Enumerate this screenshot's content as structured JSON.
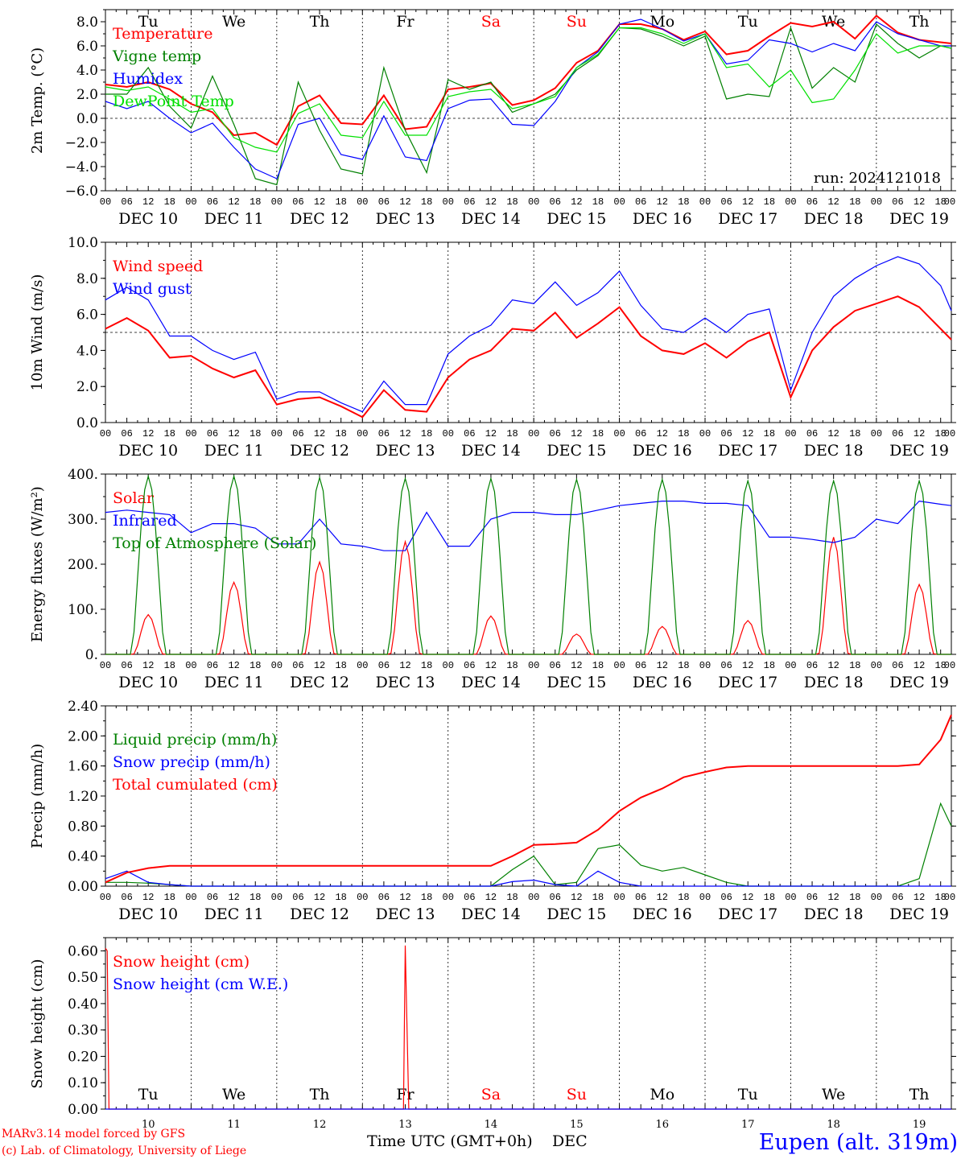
{
  "chart_data": [
    {
      "type": "line",
      "ylabel": "2m Temp. (°C)",
      "ylim": [
        -6,
        9
      ],
      "y_ticks": [
        "8.0",
        "6.0",
        "4.0",
        "2.0",
        "0.0",
        "−2.0",
        "−4.0",
        "−6.0"
      ],
      "y_tick_values": [
        8,
        6,
        4,
        2,
        0,
        -2,
        -4,
        -6
      ],
      "reference_line": 0,
      "legend": "top-left",
      "run_label": "run: 2024121018",
      "series": [
        {
          "name": "Temperature",
          "color": "#ff0000",
          "x": [
            0,
            6,
            12,
            18,
            24,
            30,
            36,
            42,
            48,
            54,
            60,
            66,
            72,
            78,
            84,
            90,
            96,
            102,
            108,
            114,
            120,
            126,
            132,
            138,
            144,
            150,
            156,
            162,
            168,
            174,
            180,
            186,
            192,
            198,
            204,
            210,
            216,
            222,
            228,
            234,
            237
          ],
          "y": [
            2.8,
            2.6,
            3.0,
            2.4,
            1.2,
            0.5,
            -1.4,
            -1.2,
            -2.2,
            1.0,
            1.9,
            -0.4,
            -0.5,
            1.9,
            -0.9,
            -0.7,
            2.4,
            2.6,
            2.9,
            1.1,
            1.5,
            2.5,
            4.6,
            5.6,
            7.8,
            7.8,
            7.4,
            6.5,
            7.2,
            5.3,
            5.6,
            6.8,
            7.9,
            7.6,
            8.0,
            6.6,
            8.5,
            7.1,
            6.5,
            6.3,
            6.2
          ]
        },
        {
          "name": "Vigne temp",
          "color": "#008000",
          "x": [
            0,
            6,
            12,
            18,
            24,
            30,
            36,
            42,
            48,
            54,
            60,
            66,
            72,
            78,
            84,
            90,
            96,
            102,
            108,
            114,
            120,
            126,
            132,
            138,
            144,
            150,
            156,
            162,
            168,
            174,
            180,
            186,
            192,
            198,
            204,
            210,
            216,
            222,
            228,
            234,
            237
          ],
          "y": [
            2.0,
            2.0,
            4.2,
            1.0,
            -0.8,
            3.5,
            -0.5,
            -5.0,
            -5.5,
            3.0,
            -1.0,
            -4.2,
            -4.6,
            4.2,
            -1.0,
            -4.5,
            3.2,
            2.4,
            3.0,
            0.5,
            1.2,
            2.0,
            4.0,
            5.2,
            7.5,
            7.4,
            6.8,
            6.0,
            6.8,
            1.6,
            2.0,
            1.8,
            7.5,
            2.5,
            4.2,
            3.0,
            7.8,
            6.2,
            5.0,
            6.0,
            5.8
          ]
        },
        {
          "name": "Humidex",
          "color": "#0000ff",
          "x": [
            0,
            6,
            12,
            18,
            24,
            30,
            36,
            42,
            48,
            54,
            60,
            66,
            72,
            78,
            84,
            90,
            96,
            102,
            108,
            114,
            120,
            126,
            132,
            138,
            144,
            150,
            156,
            162,
            168,
            174,
            180,
            186,
            192,
            198,
            204,
            210,
            216,
            222,
            228,
            234,
            237
          ],
          "y": [
            1.4,
            0.8,
            1.4,
            0.0,
            -1.2,
            -0.4,
            -2.4,
            -4.2,
            -5.0,
            -0.5,
            0.0,
            -3.0,
            -3.4,
            0.2,
            -3.2,
            -3.5,
            0.8,
            1.5,
            1.6,
            -0.5,
            -0.6,
            1.4,
            4.2,
            5.5,
            7.8,
            8.2,
            7.4,
            6.4,
            7.0,
            4.5,
            4.8,
            6.5,
            6.2,
            5.5,
            6.2,
            5.6,
            8.0,
            7.0,
            6.5,
            6.0,
            6.0
          ]
        },
        {
          "name": "DewPoint Temp",
          "color": "#00e000",
          "x": [
            0,
            6,
            12,
            18,
            24,
            30,
            36,
            42,
            48,
            54,
            60,
            66,
            72,
            78,
            84,
            90,
            96,
            102,
            108,
            114,
            120,
            126,
            132,
            138,
            144,
            150,
            156,
            162,
            168,
            174,
            180,
            186,
            192,
            198,
            204,
            210,
            216,
            222,
            228,
            234,
            237
          ],
          "y": [
            2.6,
            2.3,
            2.6,
            1.6,
            0.5,
            0.8,
            -1.6,
            -2.4,
            -2.8,
            0.4,
            1.2,
            -1.4,
            -1.6,
            1.4,
            -1.4,
            -1.4,
            1.8,
            2.2,
            2.4,
            0.8,
            1.2,
            1.8,
            4.2,
            5.3,
            7.5,
            7.5,
            7.0,
            6.2,
            7.0,
            4.2,
            4.5,
            2.6,
            4.0,
            1.3,
            1.6,
            4.0,
            7.0,
            5.4,
            6.0,
            6.0,
            5.8
          ]
        }
      ]
    },
    {
      "type": "line",
      "ylabel": "10m Wind (m/s)",
      "ylim": [
        0,
        10
      ],
      "y_ticks": [
        "10.0",
        "8.0",
        "6.0",
        "4.0",
        "2.0",
        "0.0"
      ],
      "y_tick_values": [
        10,
        8,
        6,
        4,
        2,
        0
      ],
      "reference_line": 5,
      "legend": "top-left",
      "series": [
        {
          "name": "Wind speed",
          "color": "#ff0000",
          "x": [
            0,
            6,
            12,
            18,
            24,
            30,
            36,
            42,
            48,
            54,
            60,
            66,
            72,
            78,
            84,
            90,
            96,
            102,
            108,
            114,
            120,
            126,
            132,
            138,
            144,
            150,
            156,
            162,
            168,
            174,
            180,
            186,
            192,
            198,
            204,
            210,
            216,
            222,
            228,
            234,
            237
          ],
          "y": [
            5.2,
            5.8,
            5.1,
            3.6,
            3.7,
            3.0,
            2.5,
            2.9,
            1.0,
            1.3,
            1.4,
            0.9,
            0.3,
            1.8,
            0.7,
            0.6,
            2.5,
            3.5,
            4.0,
            5.2,
            5.1,
            6.1,
            4.7,
            5.5,
            6.4,
            4.8,
            4.0,
            3.8,
            4.4,
            3.6,
            4.5,
            5.0,
            1.4,
            4.0,
            5.3,
            6.2,
            6.6,
            7.0,
            6.4,
            5.2,
            4.6
          ]
        },
        {
          "name": "Wind gust",
          "color": "#0000ff",
          "x": [
            0,
            6,
            12,
            18,
            24,
            30,
            36,
            42,
            48,
            54,
            60,
            66,
            72,
            78,
            84,
            90,
            96,
            102,
            108,
            114,
            120,
            126,
            132,
            138,
            144,
            150,
            156,
            162,
            168,
            174,
            180,
            186,
            192,
            198,
            204,
            210,
            216,
            222,
            228,
            234,
            237
          ],
          "y": [
            6.8,
            7.5,
            6.8,
            4.8,
            4.8,
            4.0,
            3.5,
            3.9,
            1.3,
            1.7,
            1.7,
            1.1,
            0.6,
            2.3,
            1.0,
            1.0,
            3.8,
            4.8,
            5.4,
            6.8,
            6.6,
            7.8,
            6.5,
            7.2,
            8.4,
            6.5,
            5.2,
            5.0,
            5.8,
            5.0,
            6.0,
            6.3,
            1.8,
            5.0,
            7.0,
            8.0,
            8.7,
            9.2,
            8.8,
            7.6,
            6.2
          ]
        }
      ]
    },
    {
      "type": "line",
      "ylabel": "Energy fluxes (W/m²)",
      "ylim": [
        0,
        400
      ],
      "y_ticks": [
        "400.",
        "300.",
        "200.",
        "100.",
        "0."
      ],
      "y_tick_values": [
        400,
        300,
        200,
        100,
        0
      ],
      "legend": "top-left",
      "series": [
        {
          "name": "Solar",
          "color": "#ff0000",
          "daily_peaks": [
            88,
            160,
            205,
            250,
            85,
            45,
            62,
            75,
            260,
            155
          ],
          "peak_hour": 12
        },
        {
          "name": "Infrared",
          "color": "#0000ff",
          "x": [
            0,
            6,
            12,
            18,
            24,
            30,
            36,
            42,
            48,
            54,
            60,
            66,
            72,
            78,
            84,
            90,
            96,
            102,
            108,
            114,
            120,
            126,
            132,
            138,
            144,
            150,
            156,
            162,
            168,
            174,
            180,
            186,
            192,
            198,
            204,
            210,
            216,
            222,
            228,
            234,
            237
          ],
          "y": [
            315,
            320,
            315,
            310,
            270,
            290,
            290,
            280,
            245,
            245,
            300,
            245,
            240,
            230,
            230,
            315,
            240,
            240,
            300,
            315,
            315,
            310,
            310,
            320,
            330,
            335,
            340,
            340,
            335,
            335,
            330,
            260,
            260,
            255,
            248,
            260,
            300,
            290,
            340,
            333,
            330
          ]
        },
        {
          "name": "Top of Atmosphere (Solar)",
          "color": "#008000",
          "daily_peaks": [
            395,
            395,
            392,
            390,
            390,
            388,
            388,
            385,
            385,
            385
          ],
          "peak_hour": 12
        }
      ]
    },
    {
      "type": "line",
      "ylabel": "Precip (mm/h)",
      "ylim": [
        0,
        2.4
      ],
      "y_ticks": [
        "2.40",
        "2.00",
        "1.60",
        "1.20",
        "0.80",
        "0.40",
        "0.00"
      ],
      "y_tick_values": [
        2.4,
        2.0,
        1.6,
        1.2,
        0.8,
        0.4,
        0.0
      ],
      "legend": "top-left",
      "series": [
        {
          "name": "Liquid precip (mm/h)",
          "color": "#008000",
          "x": [
            0,
            6,
            12,
            18,
            24,
            30,
            36,
            42,
            48,
            54,
            60,
            66,
            72,
            78,
            84,
            90,
            96,
            102,
            108,
            114,
            120,
            126,
            132,
            138,
            144,
            150,
            156,
            162,
            168,
            174,
            180,
            186,
            192,
            198,
            204,
            210,
            216,
            222,
            228,
            234,
            237
          ],
          "y": [
            0.05,
            0.05,
            0.04,
            0.02,
            0,
            0,
            0,
            0,
            0,
            0,
            0,
            0,
            0,
            0,
            0,
            0,
            0,
            0,
            0,
            0.22,
            0.4,
            0.02,
            0.05,
            0.5,
            0.55,
            0.28,
            0.2,
            0.25,
            0.15,
            0.05,
            0,
            0,
            0,
            0,
            0,
            0,
            0,
            0,
            0.1,
            1.1,
            0.8
          ]
        },
        {
          "name": "Snow precip (mm/h)",
          "color": "#0000ff",
          "x": [
            0,
            6,
            12,
            18,
            24,
            30,
            36,
            42,
            48,
            54,
            60,
            66,
            72,
            78,
            84,
            90,
            96,
            102,
            108,
            114,
            120,
            126,
            132,
            138,
            144,
            150,
            156,
            162,
            168,
            174,
            180,
            186,
            192,
            198,
            204,
            210,
            216,
            222,
            228,
            234,
            237
          ],
          "y": [
            0.1,
            0.2,
            0.05,
            0.02,
            0,
            0,
            0,
            0,
            0,
            0,
            0,
            0,
            0,
            0,
            0,
            0,
            0,
            0,
            0,
            0.06,
            0.08,
            0.02,
            0,
            0.2,
            0.05,
            0,
            0,
            0,
            0,
            0,
            0,
            0,
            0,
            0,
            0,
            0,
            0,
            0,
            0,
            0,
            0
          ]
        },
        {
          "name": "Total cumulated (cm)",
          "color": "#ff0000",
          "x": [
            0,
            6,
            12,
            18,
            24,
            30,
            36,
            42,
            48,
            54,
            60,
            66,
            72,
            78,
            84,
            90,
            96,
            102,
            108,
            114,
            120,
            126,
            132,
            138,
            144,
            150,
            156,
            162,
            168,
            174,
            180,
            186,
            192,
            198,
            204,
            210,
            216,
            222,
            228,
            234,
            237
          ],
          "y": [
            0.05,
            0.18,
            0.24,
            0.27,
            0.27,
            0.27,
            0.27,
            0.27,
            0.27,
            0.27,
            0.27,
            0.27,
            0.27,
            0.27,
            0.27,
            0.27,
            0.27,
            0.27,
            0.27,
            0.4,
            0.55,
            0.56,
            0.58,
            0.75,
            1.0,
            1.18,
            1.3,
            1.45,
            1.52,
            1.58,
            1.6,
            1.6,
            1.6,
            1.6,
            1.6,
            1.6,
            1.6,
            1.6,
            1.62,
            1.95,
            2.28
          ]
        }
      ]
    },
    {
      "type": "line",
      "ylabel": "Snow height (cm)",
      "ylim": [
        0,
        0.65
      ],
      "y_ticks": [
        "0.60",
        "0.50",
        "0.40",
        "0.30",
        "0.20",
        "0.10",
        "0.00"
      ],
      "y_tick_values": [
        0.6,
        0.5,
        0.4,
        0.3,
        0.2,
        0.1,
        0.0
      ],
      "xlabel": "Time UTC (GMT+0h)",
      "x_unit": "DEC",
      "legend": "top-left",
      "series": [
        {
          "name": "Snow height (cm)",
          "color": "#ff0000",
          "x": [
            0,
            0.5,
            1,
            82,
            83.5,
            84,
            85,
            86,
            237
          ],
          "y": [
            0.61,
            0.6,
            0,
            0,
            0,
            0.62,
            0,
            0,
            0
          ]
        },
        {
          "name": "Snow height (cm W.E.)",
          "color": "#0000ff",
          "x": [
            0,
            237
          ],
          "y": [
            0,
            0
          ]
        }
      ]
    }
  ],
  "axis": {
    "hour_ticks": [
      "00",
      "06",
      "12",
      "18"
    ],
    "last_tick": "00",
    "dates": [
      "DEC 10",
      "DEC 11",
      "DEC 12",
      "DEC 13",
      "DEC 14",
      "DEC 15",
      "DEC 16",
      "DEC 17",
      "DEC 18",
      "DEC 19"
    ],
    "weekdays": [
      "Tu",
      "We",
      "Th",
      "Fr",
      "Sa",
      "Su",
      "Mo",
      "Tu",
      "We",
      "Th"
    ],
    "weekday_colors": [
      "#000000",
      "#000000",
      "#000000",
      "#000000",
      "#ff0000",
      "#ff0000",
      "#000000",
      "#000000",
      "#000000",
      "#000000"
    ],
    "day_numbers": [
      "10",
      "11",
      "12",
      "13",
      "14",
      "15",
      "16",
      "17",
      "18",
      "19"
    ]
  },
  "footer": {
    "credit_line1": "MARv3.14 model forced by GFS",
    "credit_line2": "(c) Lab. of Climatology, University of Liege",
    "station": "Eupen (alt. 319m)",
    "credit_color": "#ff0000",
    "station_color": "#0000ff"
  }
}
